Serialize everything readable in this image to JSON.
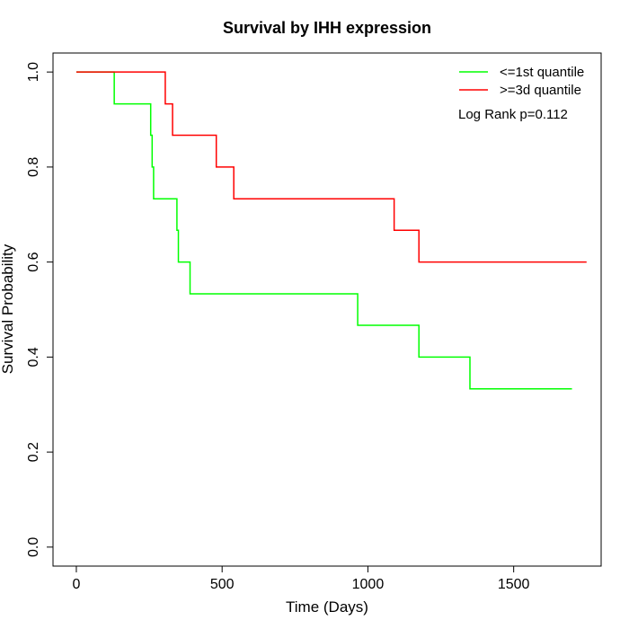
{
  "chart_data": {
    "type": "line",
    "title": "Survival by IHH expression",
    "xlabel": "Time (Days)",
    "ylabel": "Survival Probability",
    "xlim": [
      -80,
      1800
    ],
    "ylim": [
      -0.04,
      1.04
    ],
    "xticks": [
      0,
      500,
      1000,
      1500
    ],
    "xtick_labels": [
      "0",
      "500",
      "1000",
      "1500"
    ],
    "yticks": [
      0.0,
      0.2,
      0.4,
      0.6,
      0.8,
      1.0
    ],
    "ytick_labels": [
      "0.0",
      "0.2",
      "0.4",
      "0.6",
      "0.8",
      "1.0"
    ],
    "grid": false,
    "legend_position": "top-right",
    "annotation": "Log Rank p=0.112",
    "series": [
      {
        "name": "<=1st quantile",
        "color": "#00ff00",
        "step": true,
        "x": [
          0,
          130,
          130,
          255,
          255,
          260,
          260,
          265,
          265,
          345,
          345,
          350,
          350,
          390,
          390,
          965,
          965,
          1175,
          1175,
          1350,
          1350,
          1700
        ],
        "y": [
          1.0,
          1.0,
          0.933,
          0.933,
          0.867,
          0.867,
          0.8,
          0.8,
          0.733,
          0.733,
          0.667,
          0.667,
          0.6,
          0.6,
          0.533,
          0.533,
          0.467,
          0.467,
          0.4,
          0.4,
          0.333,
          0.333
        ]
      },
      {
        "name": ">=3d quantile",
        "color": "#ff0000",
        "step": true,
        "x": [
          0,
          305,
          305,
          330,
          330,
          480,
          480,
          540,
          540,
          1090,
          1090,
          1175,
          1175,
          1750
        ],
        "y": [
          1.0,
          1.0,
          0.933,
          0.933,
          0.867,
          0.867,
          0.8,
          0.8,
          0.733,
          0.733,
          0.667,
          0.667,
          0.6,
          0.6
        ]
      }
    ]
  }
}
